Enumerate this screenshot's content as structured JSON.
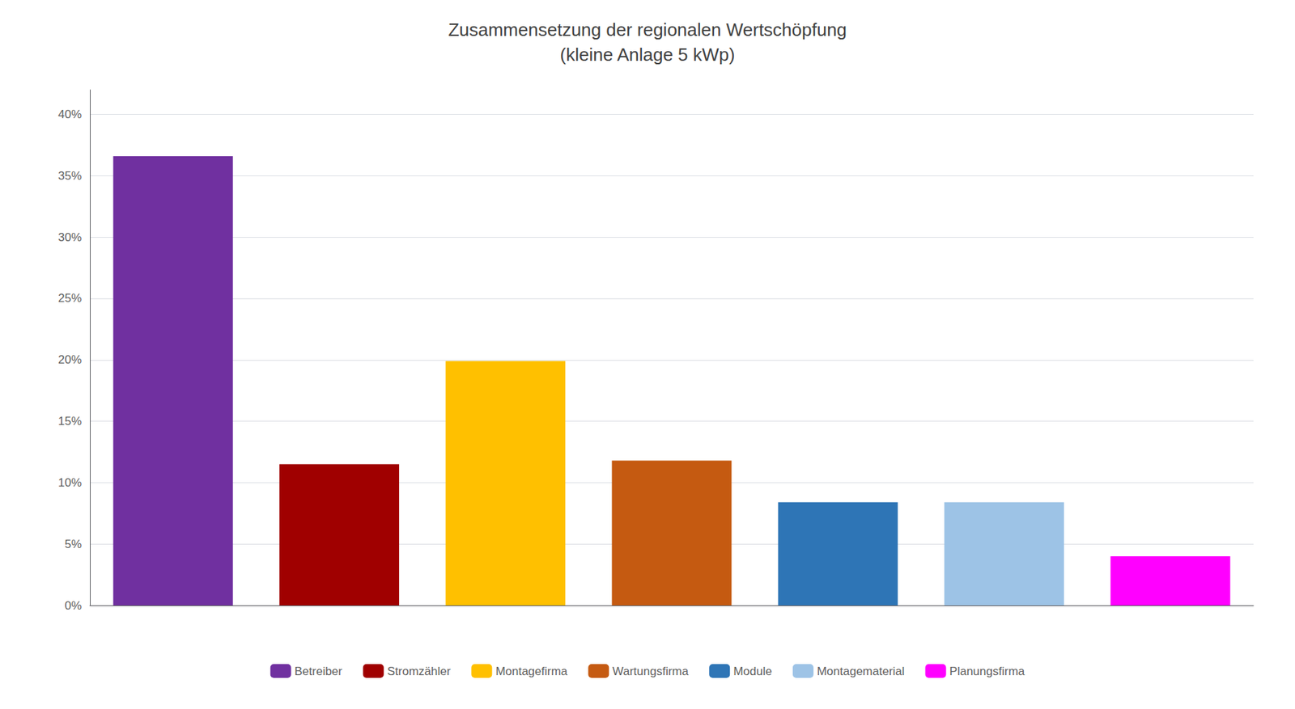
{
  "chart_data": {
    "type": "bar",
    "title": "Zusammensetzung der regionalen Wertschöpfung\n(kleine Anlage 5 kWp)",
    "categories": [
      "Betreiber",
      "Stromzähler",
      "Montagefirma",
      "Wartungsfirma",
      "Module",
      "Montagematerial",
      "Planungsfirma"
    ],
    "values": [
      0.366,
      0.115,
      0.199,
      0.118,
      0.084,
      0.084,
      0.04
    ],
    "colors": [
      "#7030A0",
      "#A00000",
      "#FFC000",
      "#C55A11",
      "#2E75B6",
      "#9DC3E6",
      "#FF00FF"
    ],
    "ylim": [
      0,
      0.42
    ],
    "yticks": [
      {
        "value": 0.0,
        "label": "0%"
      },
      {
        "value": 0.05,
        "label": "5%"
      },
      {
        "value": 0.1,
        "label": "10%"
      },
      {
        "value": 0.15,
        "label": "15%"
      },
      {
        "value": 0.2,
        "label": "20%"
      },
      {
        "value": 0.25,
        "label": "25%"
      },
      {
        "value": 0.3,
        "label": "30%"
      },
      {
        "value": 0.35,
        "label": "35%"
      },
      {
        "value": 0.4,
        "label": "40%"
      }
    ],
    "grid": true,
    "legend": "bottom",
    "tick_labels": "y"
  }
}
